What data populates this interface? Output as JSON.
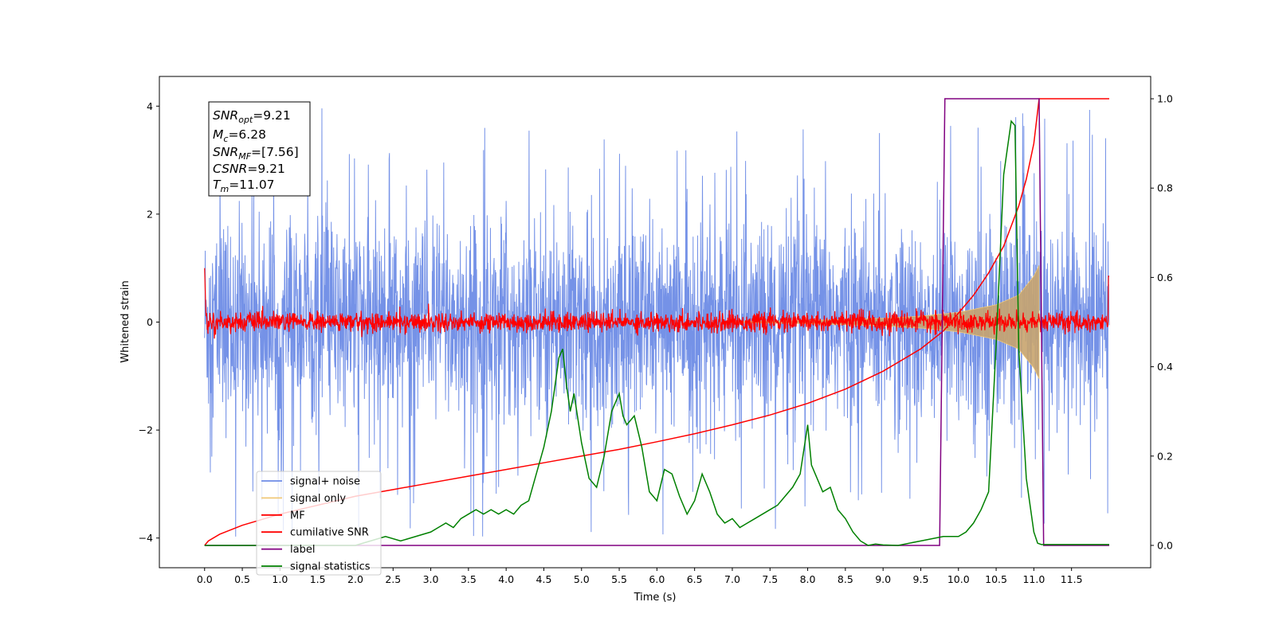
{
  "chart_data": {
    "type": "line",
    "title": "",
    "xlabel": "Time (s)",
    "ylabel": "Whitened strain",
    "ylabel_right": "",
    "xlim": [
      -0.6,
      12.55
    ],
    "ylim": [
      -4.55,
      4.55
    ],
    "ylim_right": [
      -0.05,
      1.05
    ],
    "x_ticks": [
      "0.0",
      "0.5",
      "1.0",
      "1.5",
      "2.0",
      "2.5",
      "3.0",
      "3.5",
      "4.0",
      "4.5",
      "5.0",
      "5.5",
      "6.0",
      "6.5",
      "7.0",
      "7.5",
      "8.0",
      "8.5",
      "9.0",
      "9.5",
      "10.0",
      "10.5",
      "11.0",
      "11.5"
    ],
    "y_ticks_left": [
      "4",
      "2",
      "0",
      "−2",
      "−4"
    ],
    "y_ticks_right": [
      "1.0",
      "0.8",
      "0.6",
      "0.4",
      "0.2",
      "0.0"
    ],
    "grid": false,
    "legend_position": "lower-left",
    "colors": {
      "signal_noise": "#6e8ce6",
      "signal_only": "#f0c878",
      "signal_only_fill": "#c8a46e",
      "mf": "#ff0000",
      "cumulative_snr": "#ff0000",
      "label": "#800080",
      "statistics": "#008000"
    },
    "series": [
      {
        "name": "signal+ noise",
        "axis": "left",
        "description_type": "noise band",
        "x_range": [
          0.0,
          12.0
        ],
        "amplitude_typical": 2.0,
        "amplitude_peak": 4.1
      },
      {
        "name": "signal only",
        "axis": "left",
        "description_type": "chirp envelope",
        "x_range": [
          7.0,
          11.07
        ],
        "envelope": [
          [
            7.0,
            0.01
          ],
          [
            8.0,
            0.03
          ],
          [
            9.0,
            0.07
          ],
          [
            9.5,
            0.11
          ],
          [
            10.0,
            0.18
          ],
          [
            10.5,
            0.32
          ],
          [
            10.8,
            0.5
          ],
          [
            11.0,
            0.85
          ],
          [
            11.07,
            1.05
          ]
        ]
      },
      {
        "name": "MF",
        "axis": "left",
        "description_type": "noise band",
        "x_range": [
          0.0,
          12.0
        ],
        "amplitude_typical": 0.2,
        "amplitude_peak": 0.4
      },
      {
        "name": "cumilative SNR",
        "axis": "right",
        "x": [
          0.0,
          0.05,
          0.2,
          0.5,
          1.0,
          1.5,
          2.0,
          2.5,
          3.0,
          3.5,
          4.0,
          4.5,
          5.0,
          5.5,
          6.0,
          6.5,
          7.0,
          7.5,
          8.0,
          8.5,
          9.0,
          9.5,
          9.8,
          10.0,
          10.2,
          10.4,
          10.6,
          10.8,
          10.9,
          11.0,
          11.07,
          12.0
        ],
        "values": [
          0.0,
          0.01,
          0.025,
          0.045,
          0.07,
          0.09,
          0.11,
          0.125,
          0.14,
          0.155,
          0.17,
          0.185,
          0.2,
          0.215,
          0.232,
          0.25,
          0.27,
          0.292,
          0.318,
          0.35,
          0.39,
          0.44,
          0.48,
          0.52,
          0.56,
          0.61,
          0.67,
          0.76,
          0.82,
          0.9,
          1.0,
          1.0
        ]
      },
      {
        "name": "label",
        "axis": "right",
        "x": [
          0.0,
          9.75,
          9.82,
          11.07,
          11.13,
          12.0
        ],
        "values": [
          0.0,
          0.0,
          1.0,
          1.0,
          0.0,
          0.0
        ]
      },
      {
        "name": "signal statistics",
        "axis": "right",
        "x": [
          0.0,
          1.0,
          2.0,
          2.2,
          2.4,
          2.6,
          2.8,
          3.0,
          3.1,
          3.2,
          3.3,
          3.4,
          3.5,
          3.6,
          3.7,
          3.8,
          3.9,
          4.0,
          4.1,
          4.2,
          4.3,
          4.4,
          4.5,
          4.6,
          4.7,
          4.75,
          4.8,
          4.85,
          4.9,
          5.0,
          5.1,
          5.2,
          5.3,
          5.4,
          5.5,
          5.55,
          5.6,
          5.7,
          5.8,
          5.9,
          6.0,
          6.1,
          6.2,
          6.3,
          6.4,
          6.5,
          6.6,
          6.7,
          6.8,
          6.9,
          7.0,
          7.1,
          7.2,
          7.3,
          7.4,
          7.5,
          7.6,
          7.7,
          7.8,
          7.9,
          8.0,
          8.05,
          8.1,
          8.2,
          8.3,
          8.4,
          8.5,
          8.6,
          8.7,
          8.8,
          8.9,
          9.0,
          9.2,
          9.5,
          9.8,
          10.0,
          10.1,
          10.2,
          10.3,
          10.4,
          10.5,
          10.6,
          10.7,
          10.75,
          10.8,
          10.9,
          11.0,
          11.05,
          11.1,
          12.0
        ],
        "values": [
          0.0,
          0.0,
          0.0,
          0.01,
          0.02,
          0.01,
          0.02,
          0.03,
          0.04,
          0.05,
          0.04,
          0.06,
          0.07,
          0.08,
          0.07,
          0.08,
          0.07,
          0.08,
          0.07,
          0.09,
          0.1,
          0.16,
          0.22,
          0.3,
          0.42,
          0.44,
          0.36,
          0.3,
          0.34,
          0.23,
          0.15,
          0.13,
          0.2,
          0.3,
          0.34,
          0.29,
          0.27,
          0.29,
          0.22,
          0.12,
          0.1,
          0.17,
          0.16,
          0.11,
          0.07,
          0.1,
          0.16,
          0.12,
          0.07,
          0.05,
          0.06,
          0.04,
          0.05,
          0.06,
          0.07,
          0.08,
          0.09,
          0.11,
          0.13,
          0.16,
          0.27,
          0.18,
          0.16,
          0.12,
          0.13,
          0.08,
          0.06,
          0.03,
          0.01,
          0.0,
          0.003,
          0.001,
          0.0,
          0.01,
          0.02,
          0.02,
          0.03,
          0.05,
          0.08,
          0.12,
          0.45,
          0.83,
          0.95,
          0.94,
          0.44,
          0.15,
          0.03,
          0.005,
          0.002,
          0.002
        ]
      }
    ]
  },
  "annotation": {
    "snr_opt_label": "SNR",
    "snr_opt_sub": "opt",
    "snr_opt_value": "=9.21",
    "mc_label": "M",
    "mc_sub": "c",
    "mc_value": "=6.28",
    "snr_mf_label": "SNR",
    "snr_mf_sub": "MF",
    "snr_mf_value": "=[7.56]",
    "csnr_label": "CSNR",
    "csnr_value": "=9.21",
    "tm_label": "T",
    "tm_sub": "m",
    "tm_value": "=11.07"
  }
}
